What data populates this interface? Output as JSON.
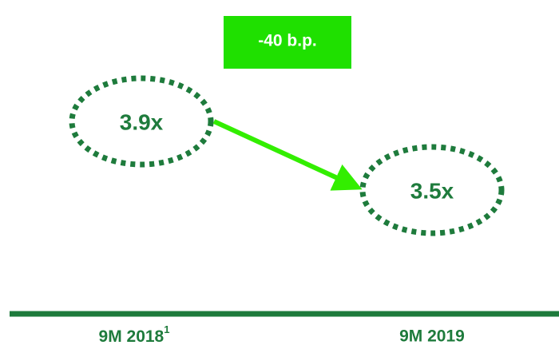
{
  "badge": "-40 b.p.",
  "points": [
    {
      "label": "3.9x",
      "period": "9M 2018",
      "footnote": "1"
    },
    {
      "label": "3.5x",
      "period": "9M 2019"
    }
  ]
}
